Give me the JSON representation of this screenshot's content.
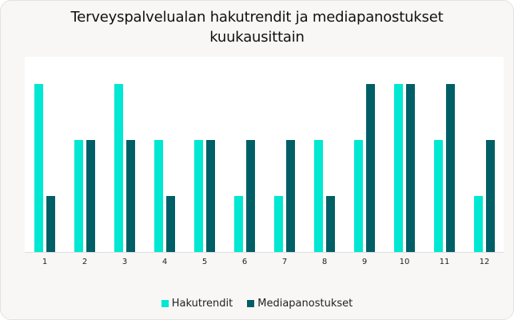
{
  "title": "Terveyspalvelualan hakutrendit ja mediapanostukset kuukausittain",
  "title_line1": "Terveyspalvelualan hakutrendit ja mediapanostukset",
  "title_line2": "kuukausittain",
  "colors": {
    "series_a": "#00e8d2",
    "series_b": "#005f66"
  },
  "legend": [
    {
      "label": "Hakutrendit",
      "color": "#00e8d2"
    },
    {
      "label": "Mediapanostukset",
      "color": "#005f66"
    }
  ],
  "chart_data": {
    "type": "bar",
    "title": "Terveyspalvelualan hakutrendit ja mediapanostukset kuukausittain",
    "xlabel": "",
    "ylabel": "",
    "categories": [
      "1",
      "2",
      "3",
      "4",
      "5",
      "6",
      "7",
      "8",
      "9",
      "10",
      "11",
      "12"
    ],
    "series": [
      {
        "name": "Hakutrendit",
        "values": [
          3,
          2,
          3,
          2,
          2,
          1,
          1,
          2,
          2,
          3,
          2,
          1
        ]
      },
      {
        "name": "Mediapanostukset",
        "values": [
          1,
          2,
          2,
          1,
          2,
          2,
          2,
          1,
          3,
          3,
          3,
          2
        ]
      }
    ],
    "ylim": [
      0,
      3.5
    ],
    "grid": false,
    "legend_position": "bottom"
  }
}
